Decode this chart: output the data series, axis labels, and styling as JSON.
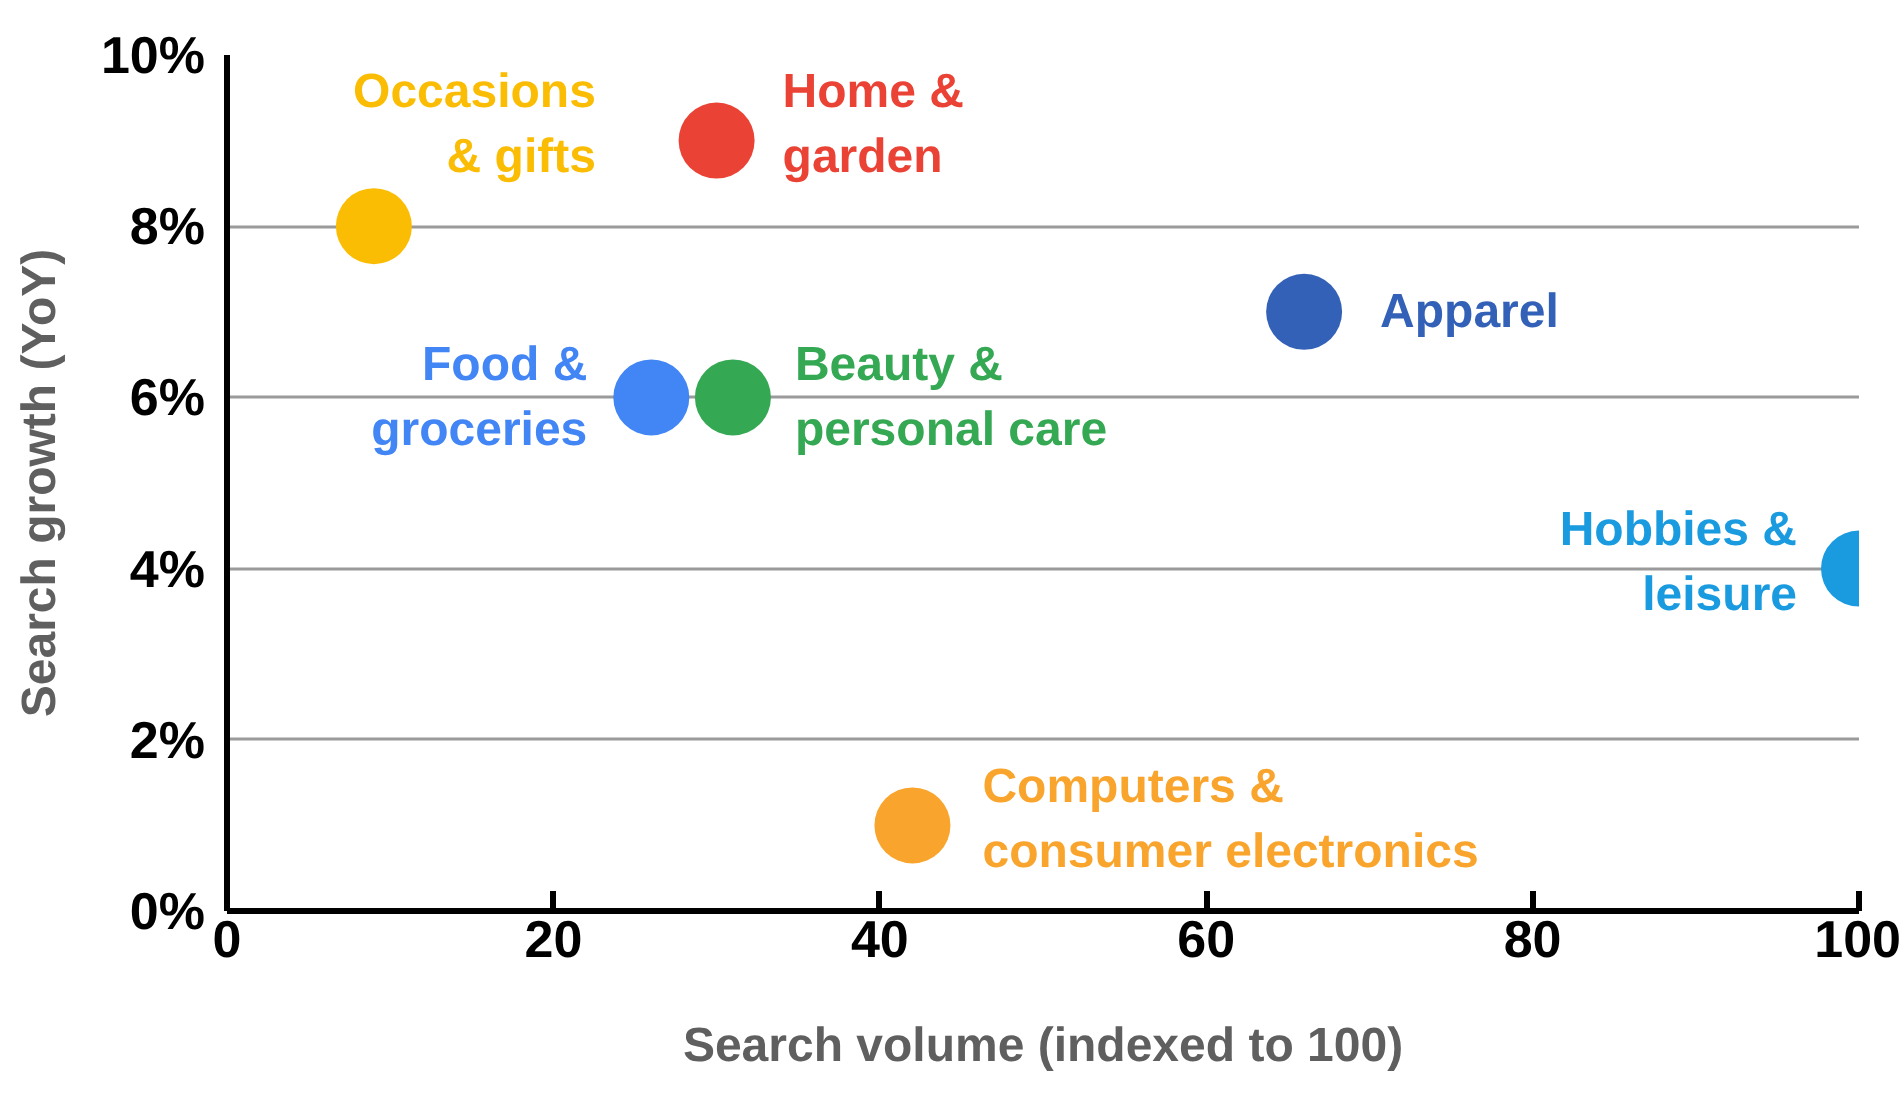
{
  "chart_data": {
    "type": "scatter",
    "xlabel": "Search volume (indexed to 100)",
    "ylabel": "Search growth (YoY)",
    "xlim": [
      0,
      100
    ],
    "xticks": [
      0,
      20,
      40,
      60,
      80,
      100
    ],
    "ylim": [
      0,
      10
    ],
    "yticks": [
      {
        "value": 0,
        "label": "0%"
      },
      {
        "value": 2,
        "label": "2%"
      },
      {
        "value": 4,
        "label": "4%"
      },
      {
        "value": 6,
        "label": "6%"
      },
      {
        "value": 8,
        "label": "8%"
      },
      {
        "value": 10,
        "label": "10%"
      }
    ],
    "grid": "y",
    "marker": "circle",
    "series": [
      {
        "name": "Occasions\n& gifts",
        "color": "#fbbc04",
        "x": [
          9
        ],
        "values": [
          8
        ]
      },
      {
        "name": "Home &\ngarden",
        "color": "#ea4335",
        "x": [
          30
        ],
        "values": [
          9
        ]
      },
      {
        "name": "Food &\ngroceries",
        "color": "#4285f4",
        "x": [
          26
        ],
        "values": [
          6
        ]
      },
      {
        "name": "Beauty &\npersonal care",
        "color": "#34a853",
        "x": [
          31
        ],
        "values": [
          6
        ]
      },
      {
        "name": "Apparel",
        "color": "#3461b8",
        "x": [
          66
        ],
        "values": [
          7
        ]
      },
      {
        "name": "Hobbies &\nleisure",
        "color": "#1a9be0",
        "x": [
          100
        ],
        "values": [
          4
        ]
      },
      {
        "name": "Computers &\nconsumer electronics",
        "color": "#f9a52d",
        "x": [
          42
        ],
        "values": [
          1
        ]
      }
    ]
  }
}
